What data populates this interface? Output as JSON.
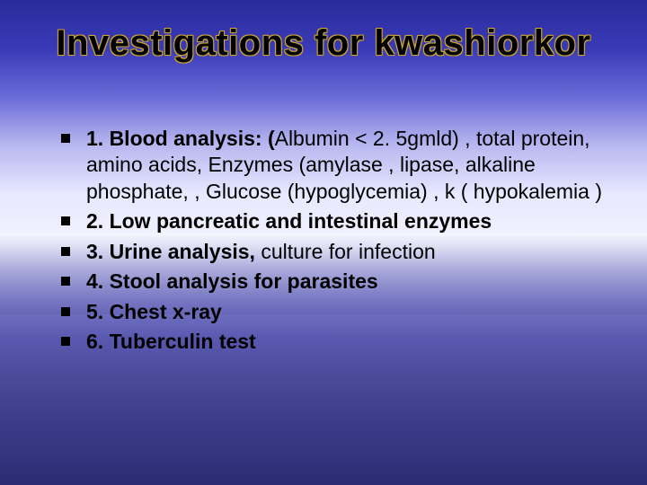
{
  "title": "Investigations for kwashiorkor",
  "title_fontsize": 40,
  "body_fontsize": 23,
  "text_color": "#000000",
  "title_outline_color": "#c9a227",
  "background_gradient_stops": [
    "#2a2a9a",
    "#3a3ab8",
    "#6a6ad8",
    "#b8b8f0",
    "#e8e8ff",
    "#f0f0ff",
    "#a8a8d8",
    "#7a7ac8",
    "#5858b0",
    "#4a4a98",
    "#3a3a88",
    "#2c2c74"
  ],
  "bullet_marker": "square",
  "bullet_marker_color": "#000000",
  "items": [
    {
      "bold": "1. Blood analysis:  (",
      "rest": "Albumin   < 2. 5gmld)  ,   total protein,    amino acids, Enzymes (amylase , lipase, alkaline  phosphate,  , Glucose (hypoglycemia)  ,  k ( hypokalemia )"
    },
    {
      "bold": "2. Low pancreatic and intestinal enzymes",
      "rest": ""
    },
    {
      "bold": "3. Urine analysis, ",
      "rest": "culture for infection"
    },
    {
      "bold": "4. Stool analysis for parasites",
      "rest": ""
    },
    {
      "bold": "5. Chest x-ray",
      "rest": ""
    },
    {
      "bold": "6. Tuberculin test",
      "rest": ""
    }
  ]
}
